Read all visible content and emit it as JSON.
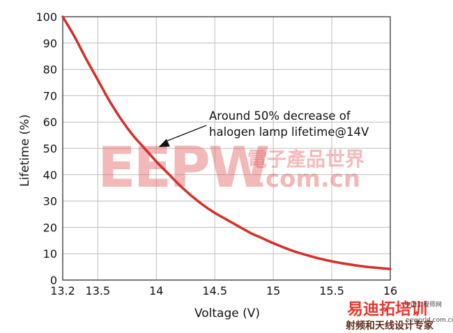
{
  "chart_data": {
    "type": "line",
    "xlabel": "Voltage (V)",
    "ylabel": "Lifetime (%)",
    "xlim": [
      13.2,
      16
    ],
    "ylim": [
      0,
      100
    ],
    "x_ticks": [
      13.2,
      13.5,
      14,
      14.5,
      15,
      15.5,
      16
    ],
    "x_tick_labels": [
      "13.2",
      "13.5",
      "14",
      "14.5",
      "15",
      "15.5",
      "16"
    ],
    "y_ticks": [
      0,
      10,
      20,
      30,
      40,
      50,
      60,
      70,
      80,
      90,
      100
    ],
    "y_tick_labels": [
      "0",
      "10",
      "20",
      "30",
      "40",
      "50",
      "60",
      "70",
      "80",
      "90",
      "100"
    ],
    "grid": true,
    "series": [
      {
        "color": "#d3322b",
        "x": [
          13.2,
          13.3,
          13.4,
          13.5,
          13.6,
          13.7,
          13.8,
          13.9,
          14.0,
          14.1,
          14.2,
          14.3,
          14.4,
          14.5,
          14.6,
          14.7,
          14.8,
          14.9,
          15.0,
          15.1,
          15.2,
          15.3,
          15.4,
          15.5,
          15.6,
          15.7,
          15.8,
          15.9,
          16.0
        ],
        "y": [
          100,
          92.5,
          84,
          76,
          68,
          61,
          55,
          50,
          45,
          40.5,
          36,
          32,
          28.5,
          25.5,
          23,
          20.5,
          18,
          16,
          14,
          12.2,
          10.6,
          9.3,
          8.1,
          7.1,
          6.3,
          5.6,
          5.0,
          4.6,
          4.2
        ]
      }
    ],
    "annotations": [
      {
        "lines": [
          "Around 50% decrease of",
          "halogen lamp lifetime@14V"
        ],
        "arrow_to": {
          "x": 14.02,
          "y": 50.5
        }
      }
    ]
  },
  "watermarks": {
    "main": "EEPW",
    "cn": "電子產品世界",
    "domain": ".com.cn",
    "corner_main": "易迪拓培训",
    "corner_sub": "射频和天线设计专家",
    "corner_small": "中国工程师网",
    "corner_url": "eeworld.com.cn"
  }
}
